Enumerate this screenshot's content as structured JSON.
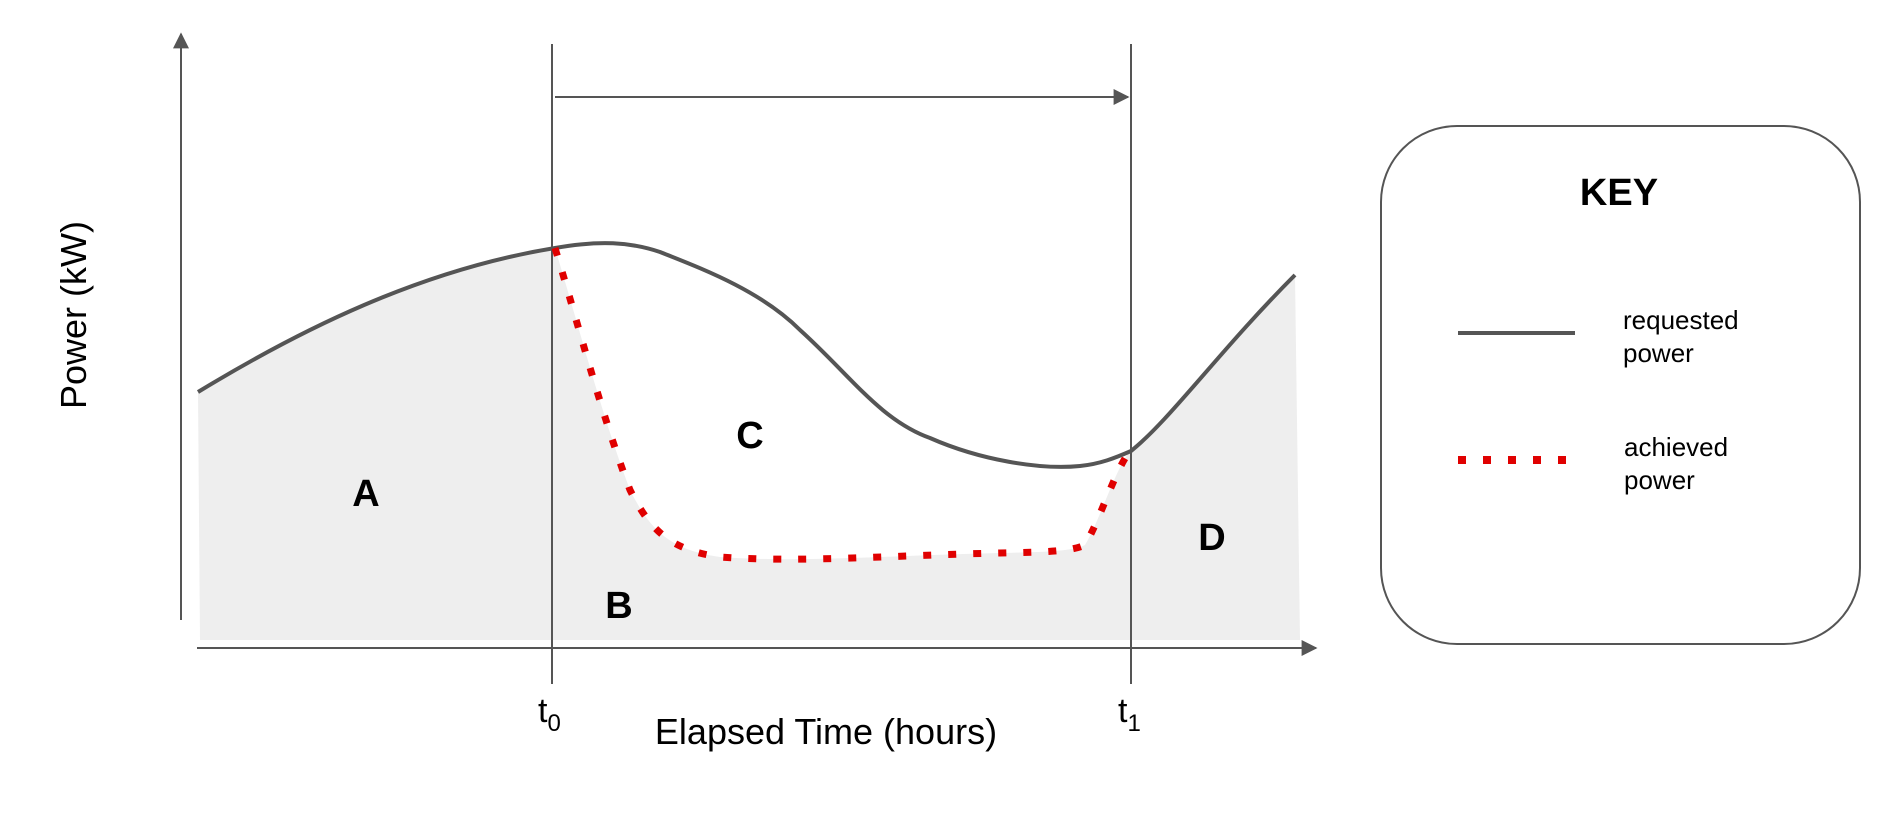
{
  "axes": {
    "y_label": "Power (kW)",
    "x_label": "Elapsed Time (hours)",
    "ticks": [
      {
        "base": "t",
        "sub": "0"
      },
      {
        "base": "t",
        "sub": "1"
      }
    ]
  },
  "regions": {
    "a": "A",
    "b": "B",
    "c": "C",
    "d": "D"
  },
  "key": {
    "title": "KEY",
    "requested_line1": "requested",
    "requested_line2": "power",
    "achieved_line1": "achieved",
    "achieved_line2": "power"
  },
  "colors": {
    "requested_line": "#555555",
    "achieved_line": "#e00000",
    "shaded_area": "#eeeeee",
    "axis": "#555555"
  }
}
